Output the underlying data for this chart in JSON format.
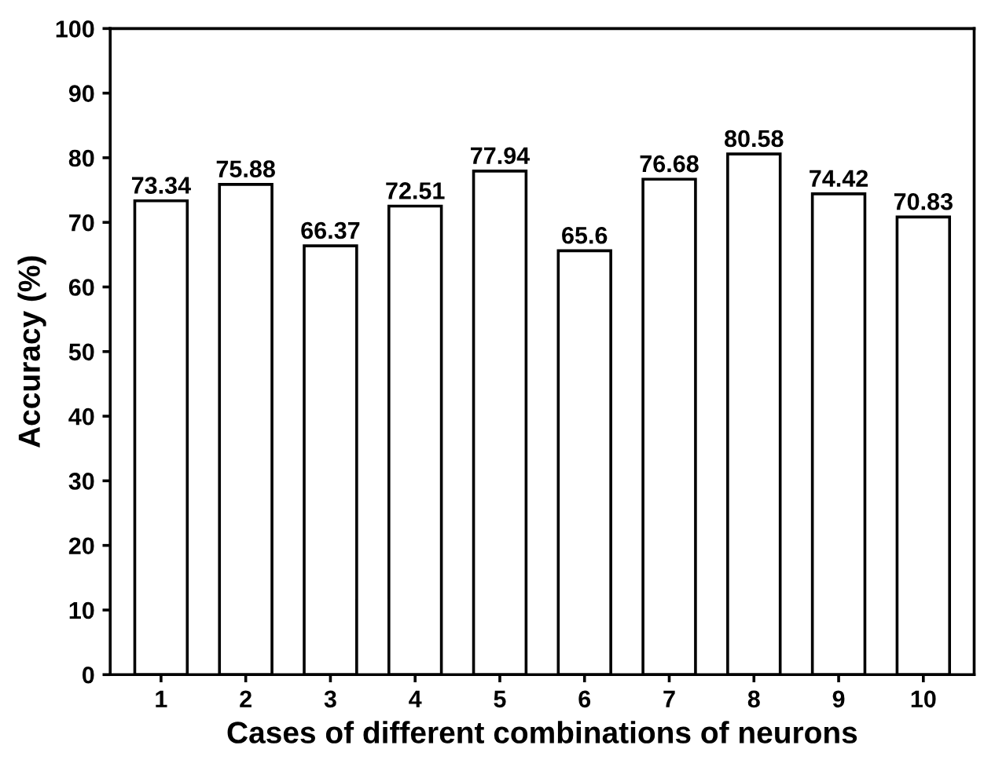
{
  "chart_data": {
    "type": "bar",
    "xlabel": "Cases of different combinations of neurons",
    "ylabel": "Accuracy (%)",
    "categories": [
      "1",
      "2",
      "3",
      "4",
      "5",
      "6",
      "7",
      "8",
      "9",
      "10"
    ],
    "values": [
      73.34,
      75.88,
      66.37,
      72.51,
      77.94,
      65.6,
      76.68,
      80.58,
      74.42,
      70.83
    ],
    "color": "#ffffff",
    "ylim": [
      0,
      100
    ],
    "yticks": [
      0,
      10,
      20,
      30,
      40,
      50,
      60,
      70,
      80,
      90,
      100
    ],
    "data_labels": true,
    "grid": false
  }
}
